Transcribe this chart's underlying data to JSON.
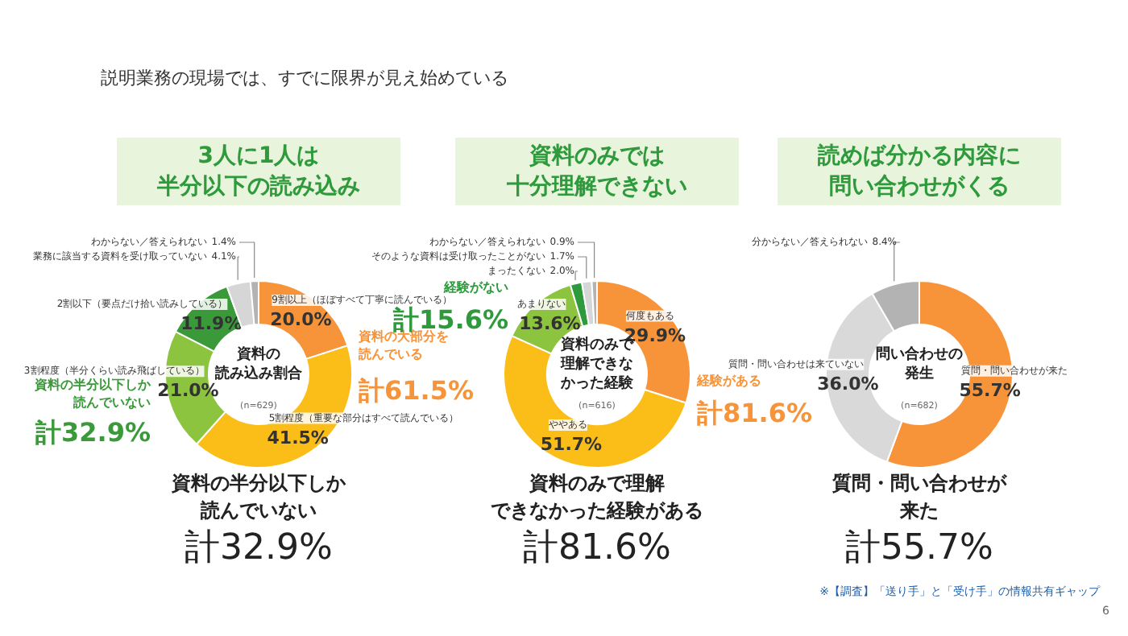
{
  "chart_data": [
    {
      "type": "donut",
      "title": "3人に1人は半分以下の読み込み",
      "categories": [
        "9割以上（ほぼすべて丁寧に読んでいる）",
        "5割程度（重要な部分はすべて読んでいる）",
        "3割程度（半分くらい読み飛ばしている）",
        "2割以下（要点だけ拾い読みしている）",
        "業務に該当する資料を受け取っていない",
        "わからない／答えられない"
      ],
      "values": [
        20.0,
        41.5,
        21.0,
        11.9,
        4.1,
        1.4
      ],
      "value_labels": [
        "20.0%",
        "41.5%",
        "21.0%",
        "11.9%",
        "4.1%",
        "1.4%"
      ],
      "colors": [
        "#f7943a",
        "#fbbd18",
        "#8cc43f",
        "#3a9a3a",
        "#d6d6d6",
        "#b3b3b3"
      ],
      "annotations": [
        "資料の読み込み割合",
        "(n=629)",
        "資料の大部分を読んでいる",
        "計61.5%",
        "資料の半分以下しか読んでいない",
        "計32.9%",
        "資料の半分以下しか読んでいない",
        "計32.9%",
        "説明業務の現場では、すでに限界が見え始めている"
      ]
    },
    {
      "type": "donut",
      "title": "資料のみでは十分理解できない",
      "categories": [
        "何度もある",
        "ややある",
        "あまりない",
        "まったくない",
        "そのような資料は受け取ったことがない",
        "わからない／答えられない"
      ],
      "values": [
        29.9,
        51.7,
        13.6,
        2.0,
        1.7,
        0.9
      ],
      "value_labels": [
        "29.9%",
        "51.7%",
        "13.6%",
        "2.0%",
        "1.7%",
        "0.9%"
      ],
      "colors": [
        "#f7943a",
        "#fbbd18",
        "#8cc43f",
        "#2e9a3c",
        "#d6d6d6",
        "#b3b3b3"
      ],
      "annotations": [
        "資料のみで理解できなかった経験",
        "(n=616)",
        "経験がある",
        "計81.6%",
        "経験がない",
        "計15.6%",
        "資料のみで理解できなかった経験がある",
        "計81.6%"
      ]
    },
    {
      "type": "donut",
      "title": "読めば分かる内容に問い合わせがくる",
      "categories": [
        "質問・問い合わせが来た",
        "質問・問い合わせは来ていない",
        "分からない／答えられない"
      ],
      "values": [
        55.7,
        36.0,
        8.4
      ],
      "value_labels": [
        "55.7%",
        "36.0%",
        "8.4%"
      ],
      "colors": [
        "#f7943a",
        "#d9d9d9",
        "#b3b3b3"
      ],
      "annotations": [
        "問い合わせの発生",
        "(n=682)",
        null,
        null,
        null,
        null,
        "質問・問い合わせが来た",
        "計55.7%",
        "※【調査】「送り手」と「受け手」の情報共有ギャップ",
        "6"
      ]
    }
  ]
}
